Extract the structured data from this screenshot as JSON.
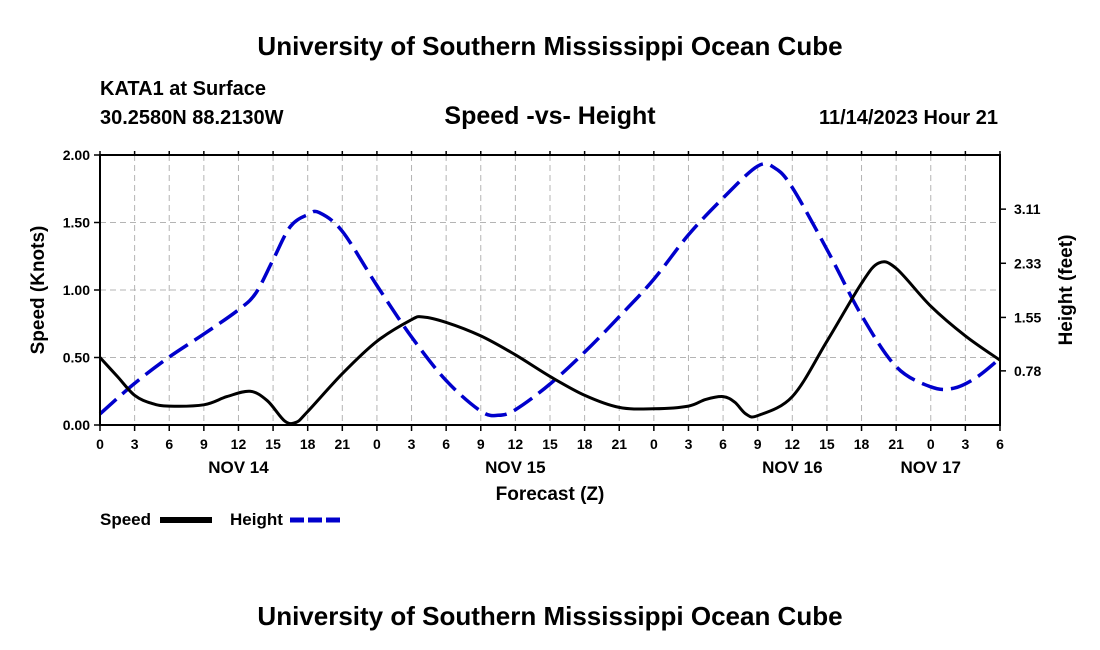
{
  "page": {
    "top_title": "University of Southern Mississippi Ocean Cube",
    "bottom_title": "University of Southern Mississippi Ocean Cube",
    "station": "KATA1 at Surface",
    "coords": "30.2580N  88.2130W",
    "datetime": "11/14/2023 Hour 21"
  },
  "chart_data": {
    "type": "line",
    "title": "Speed -vs- Height",
    "xlabel": "Forecast (Z)",
    "ylabel": "Speed (Knots)",
    "y2label": "Height (feet)",
    "ylim": [
      0,
      2.0
    ],
    "y2lim": [
      0,
      3.89
    ],
    "xlim_hours": [
      0,
      78
    ],
    "grid": true,
    "y_ticks": [
      {
        "value": 0,
        "label": "0.00"
      },
      {
        "value": 0.5,
        "label": "0.50"
      },
      {
        "value": 1.0,
        "label": "1.00"
      },
      {
        "value": 1.5,
        "label": "1.50"
      },
      {
        "value": 2.0,
        "label": "2.00"
      }
    ],
    "y2_ticks": [
      {
        "value": 0.78,
        "label": "0.78"
      },
      {
        "value": 1.55,
        "label": "1.55"
      },
      {
        "value": 2.33,
        "label": "2.33"
      },
      {
        "value": 3.11,
        "label": "3.11"
      }
    ],
    "x_ticks": [
      {
        "h": 0,
        "label": "0"
      },
      {
        "h": 3,
        "label": "3"
      },
      {
        "h": 6,
        "label": "6"
      },
      {
        "h": 9,
        "label": "9"
      },
      {
        "h": 12,
        "label": "12"
      },
      {
        "h": 15,
        "label": "15"
      },
      {
        "h": 18,
        "label": "18"
      },
      {
        "h": 21,
        "label": "21"
      },
      {
        "h": 24,
        "label": "0"
      },
      {
        "h": 27,
        "label": "3"
      },
      {
        "h": 30,
        "label": "6"
      },
      {
        "h": 33,
        "label": "9"
      },
      {
        "h": 36,
        "label": "12"
      },
      {
        "h": 39,
        "label": "15"
      },
      {
        "h": 42,
        "label": "18"
      },
      {
        "h": 45,
        "label": "21"
      },
      {
        "h": 48,
        "label": "0"
      },
      {
        "h": 51,
        "label": "3"
      },
      {
        "h": 54,
        "label": "6"
      },
      {
        "h": 57,
        "label": "9"
      },
      {
        "h": 60,
        "label": "12"
      },
      {
        "h": 63,
        "label": "15"
      },
      {
        "h": 66,
        "label": "18"
      },
      {
        "h": 69,
        "label": "21"
      },
      {
        "h": 72,
        "label": "0"
      },
      {
        "h": 75,
        "label": "3"
      },
      {
        "h": 78,
        "label": "6"
      }
    ],
    "date_labels": [
      {
        "h": 12,
        "label": "NOV 14"
      },
      {
        "h": 36,
        "label": "NOV 15"
      },
      {
        "h": 60,
        "label": "NOV 16"
      },
      {
        "h": 72,
        "label": "NOV 17"
      }
    ],
    "series": [
      {
        "name": "Speed",
        "axis": "left",
        "color": "#000000",
        "style": "solid",
        "x": [
          0,
          1.5,
          3,
          4.5,
          6,
          9,
          11,
          13,
          14.5,
          16,
          17,
          18,
          21,
          24,
          27,
          28,
          30,
          33,
          36,
          39,
          42,
          45,
          48,
          51,
          52.5,
          54,
          55,
          56,
          57,
          60,
          63,
          66,
          67.5,
          69,
          72,
          75,
          78
        ],
        "values": [
          0.5,
          0.36,
          0.22,
          0.16,
          0.14,
          0.15,
          0.21,
          0.25,
          0.18,
          0.03,
          0.02,
          0.1,
          0.38,
          0.62,
          0.78,
          0.8,
          0.76,
          0.66,
          0.52,
          0.36,
          0.22,
          0.13,
          0.12,
          0.14,
          0.19,
          0.21,
          0.17,
          0.08,
          0.07,
          0.21,
          0.62,
          1.05,
          1.2,
          1.16,
          0.88,
          0.66,
          0.48
        ]
      },
      {
        "name": "Height",
        "axis": "right",
        "color": "#0000cc",
        "style": "dashed",
        "x": [
          0,
          3,
          6,
          9,
          12,
          13.5,
          15,
          16.5,
          18,
          19,
          21,
          24,
          27,
          30,
          33,
          34.5,
          36,
          39,
          42,
          45,
          48,
          51,
          54,
          57,
          58.5,
          60,
          63,
          66,
          69,
          72,
          74,
          76,
          78
        ],
        "values": [
          0.16,
          0.6,
          0.98,
          1.31,
          1.66,
          1.9,
          2.38,
          2.86,
          3.03,
          3.06,
          2.79,
          2.01,
          1.27,
          0.64,
          0.2,
          0.14,
          0.22,
          0.59,
          1.05,
          1.56,
          2.1,
          2.74,
          3.27,
          3.73,
          3.7,
          3.42,
          2.53,
          1.58,
          0.84,
          0.55,
          0.53,
          0.69,
          0.96
        ]
      }
    ],
    "legend": {
      "placement": "bottom-left",
      "entries": [
        {
          "name": "Speed",
          "color": "#000000",
          "style": "solid"
        },
        {
          "name": "Height",
          "color": "#0000cc",
          "style": "dashed"
        }
      ]
    }
  }
}
